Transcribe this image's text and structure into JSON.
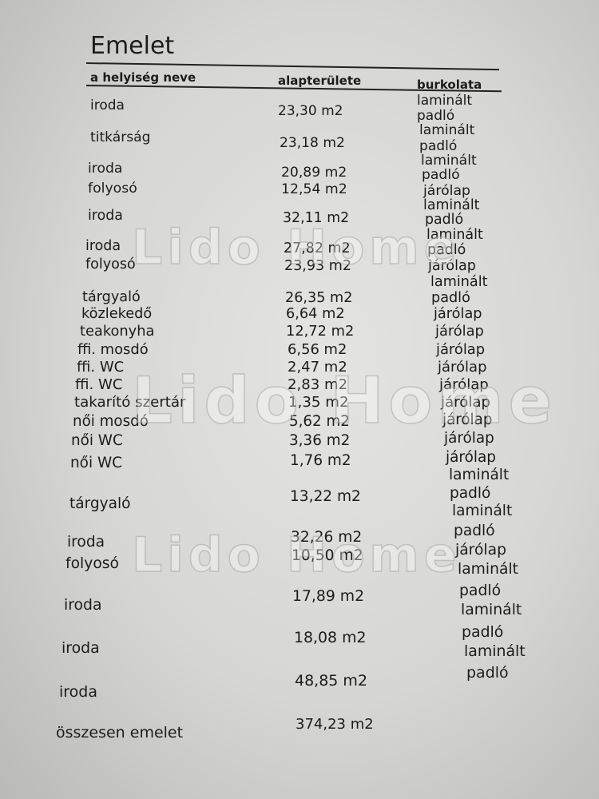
{
  "title": "Emelet",
  "headers": {
    "name": "a helyiség neve",
    "area": "alapterülete",
    "finish": "burkolata"
  },
  "rows": [
    {
      "name": "iroda",
      "area": "23,30 m2",
      "finish": [
        "laminált",
        "padló"
      ]
    },
    {
      "name": "titkárság",
      "area": "23,18 m2",
      "finish": [
        "laminált",
        "padló"
      ]
    },
    {
      "name": "iroda",
      "area": "20,89 m2",
      "finish": [
        "laminált",
        "padló"
      ]
    },
    {
      "name": "folyosó",
      "area": "12,54 m2",
      "finish": [
        "járólap"
      ]
    },
    {
      "name": "iroda",
      "area": "32,11 m2",
      "finish": [
        "laminált",
        "padló"
      ]
    },
    {
      "name": "iroda",
      "area": "27,82 m2",
      "finish": [
        "laminált",
        "padló"
      ]
    },
    {
      "name": "folyosó",
      "area": "23,93 m2",
      "finish": [
        "járólap"
      ]
    },
    {
      "name": "tárgyaló",
      "area": "26,35 m2",
      "finish": [
        "laminált",
        "padló"
      ]
    },
    {
      "name": "közlekedő",
      "area": "6,64 m2",
      "finish": [
        "járólap"
      ]
    },
    {
      "name": "teakonyha",
      "area": "12,72 m2",
      "finish": [
        "járólap"
      ]
    },
    {
      "name": "ffi. mosdó",
      "area": "6,56 m2",
      "finish": [
        "járólap"
      ]
    },
    {
      "name": "ffi. WC",
      "area": "2,47 m2",
      "finish": [
        "járólap"
      ]
    },
    {
      "name": "ffi. WC",
      "area": "2,83 m2",
      "finish": [
        "járólap"
      ]
    },
    {
      "name": "takarító szertár",
      "area": "1,35 m2",
      "finish": [
        "járólap"
      ]
    },
    {
      "name": "női mosdó",
      "area": "5,62 m2",
      "finish": [
        "járólap"
      ]
    },
    {
      "name": "női WC",
      "area": "3,36 m2",
      "finish": [
        "járólap"
      ]
    },
    {
      "name": "női WC",
      "area": "1,76 m2",
      "finish": [
        "járólap"
      ]
    },
    {
      "name": "tárgyaló",
      "area": "13,22 m2",
      "finish": [
        "laminált",
        "padló",
        "laminált"
      ]
    },
    {
      "name": "iroda",
      "area": "32,26 m2",
      "finish": [
        "padló"
      ]
    },
    {
      "name": "folyosó",
      "area": "10,50 m2",
      "finish": [
        "járólap",
        "laminált"
      ]
    },
    {
      "name": "iroda",
      "area": "17,89 m2",
      "finish": [
        "padló",
        "laminált"
      ]
    },
    {
      "name": "iroda",
      "area": "18,08 m2",
      "finish": [
        "padló",
        "laminált"
      ]
    },
    {
      "name": "iroda",
      "area": "48,85 m2",
      "finish": [
        "padló"
      ]
    }
  ],
  "total": {
    "label": "összesen emelet",
    "area": "374,23 m2"
  },
  "watermark": "Lido Home"
}
